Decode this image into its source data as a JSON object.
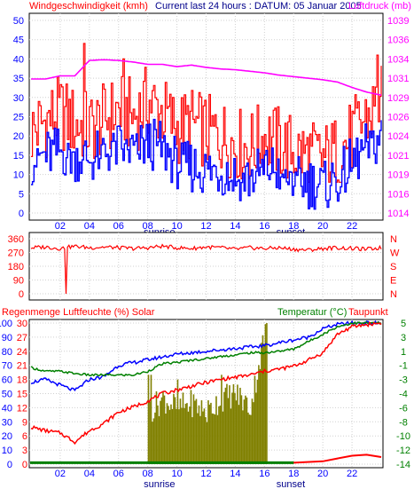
{
  "header": {
    "left_label": "Windgeschwindigkeit (kmh)",
    "center_label": "Current last 24 hours : DATUM: 05 Januar 2005",
    "right_label": "Luftdruck (mb)"
  },
  "panel2": {
    "dir_labels": [
      "N",
      "W",
      "S",
      "E",
      "N"
    ]
  },
  "panel3_header": {
    "left_label": "Regenmenge  Luftfeuchte (%)  Solar",
    "right_label1": "Temperatur (°C)",
    "right_label2": "Taupunkt"
  },
  "markers": {
    "sunrise": "sunrise",
    "sunset": "sunset"
  },
  "colors": {
    "wind_gust": "#ff0000",
    "wind_avg": "#0000ff",
    "pressure": "#ff00ff",
    "direction": "#ff0000",
    "humidity": "#0000ff",
    "temperature": "#008000",
    "dewpoint": "#ff0000",
    "solar": "#808000",
    "rain": "#ff0000",
    "grid": "#d0d0d0"
  },
  "chart_data": [
    {
      "type": "line",
      "x_ticks": [
        "02",
        "04",
        "06",
        "08",
        "10",
        "12",
        "14",
        "16",
        "18",
        "20",
        "22"
      ],
      "y_ticks_left": [
        "50",
        "45",
        "40",
        "35",
        "30",
        "25",
        "20",
        "15",
        "10",
        "5",
        "0"
      ],
      "y_ticks_right": [
        "1039",
        "1036",
        "1034",
        "1031",
        "1029",
        "1026",
        "1024",
        "1021",
        "1019",
        "1016",
        "1014"
      ],
      "ylim_left": [
        0,
        50
      ],
      "ylim_right": [
        1014,
        1039
      ],
      "series": [
        {
          "name": "Windgeschwindigkeit (kmh)",
          "x": [
            0,
            1,
            2,
            3,
            4,
            5,
            6,
            7,
            8,
            9,
            10,
            11,
            12,
            13,
            14,
            15,
            16,
            17,
            18,
            19,
            20,
            21,
            22,
            23,
            24
          ],
          "values": [
            25,
            28,
            30,
            27,
            26,
            28,
            31,
            29,
            33,
            30,
            26,
            27,
            25,
            24,
            22,
            21,
            24,
            22,
            20,
            19,
            18,
            20,
            24,
            29,
            33
          ]
        },
        {
          "x": [
            0,
            1,
            2,
            3,
            4,
            5,
            6,
            7,
            8,
            9,
            10,
            11,
            12,
            13,
            14,
            15,
            16,
            17,
            18,
            19,
            20,
            21,
            22,
            23,
            24
          ],
          "values": [
            14,
            15,
            16,
            15,
            14,
            16,
            17,
            16,
            18,
            17,
            13,
            12,
            11,
            11,
            10,
            9,
            12,
            11,
            9,
            8,
            7,
            9,
            13,
            17,
            20
          ]
        },
        {
          "name": "Luftdruck (mb)",
          "x": [
            0,
            1,
            2,
            3,
            4,
            5,
            6,
            7,
            8,
            9,
            10,
            11,
            12,
            13,
            14,
            15,
            16,
            17,
            18,
            19,
            20,
            21,
            22,
            23,
            24
          ],
          "values": [
            1031.4,
            1031.4,
            1031.8,
            1031.8,
            1033.8,
            1033.9,
            1033.8,
            1033.6,
            1033.3,
            1033.3,
            1033.0,
            1033.2,
            1032.9,
            1032.7,
            1032.6,
            1032.4,
            1032.2,
            1031.9,
            1031.7,
            1031.5,
            1031.3,
            1031.0,
            1030.3,
            1029.7,
            1029.3
          ]
        }
      ]
    },
    {
      "type": "line",
      "x_ticks": [
        "02",
        "04",
        "06",
        "08",
        "10",
        "12",
        "14",
        "16",
        "18",
        "20",
        "22"
      ],
      "y_ticks": [
        "360",
        "270",
        "180",
        "90",
        "0"
      ],
      "ylim": [
        0,
        360
      ],
      "series": [
        {
          "x": [
            0,
            1,
            2,
            3,
            4,
            5,
            6,
            7,
            8,
            9,
            10,
            11,
            12,
            13,
            14,
            15,
            16,
            17,
            18,
            19,
            20,
            21,
            22,
            23,
            24
          ],
          "values": [
            300,
            305,
            295,
            310,
            300,
            305,
            300,
            295,
            300,
            310,
            300,
            295,
            305,
            300,
            290,
            300,
            295,
            300,
            290,
            285,
            295,
            300,
            295,
            290,
            300
          ]
        }
      ]
    },
    {
      "type": "line",
      "x_ticks": [
        "02",
        "04",
        "06",
        "08",
        "10",
        "12",
        "14",
        "16",
        "18",
        "20",
        "22"
      ],
      "y_ticks_left": [
        "100",
        "90",
        "80",
        "70",
        "60",
        "50",
        "40",
        "30",
        "20",
        "10",
        "0"
      ],
      "y_ticks_left_inner": [
        "30",
        "27",
        "24",
        "21",
        "18",
        "15",
        "12",
        "9",
        "6",
        "3",
        "0"
      ],
      "y_ticks_right": [
        "5",
        "3",
        "1",
        "-1",
        "-3",
        "-4",
        "-6",
        "-8",
        "-10",
        "-12",
        "-14"
      ],
      "ylim_left": [
        0,
        100
      ],
      "ylim_right": [
        -14,
        5
      ],
      "series": [
        {
          "name": "Luftfeuchte (%)",
          "x": [
            0,
            1,
            2,
            3,
            4,
            5,
            6,
            7,
            8,
            9,
            10,
            11,
            12,
            13,
            14,
            15,
            16,
            17,
            18,
            19,
            20,
            21,
            22,
            23,
            24
          ],
          "values": [
            58,
            60,
            56,
            52,
            60,
            62,
            70,
            72,
            74,
            76,
            78,
            79,
            80,
            81,
            82,
            83,
            84,
            86,
            88,
            90,
            96,
            99,
            100,
            100,
            100
          ]
        },
        {
          "name": "Temperatur (°C)",
          "x": [
            0,
            1,
            2,
            3,
            4,
            5,
            6,
            7,
            8,
            9,
            10,
            11,
            12,
            13,
            14,
            15,
            16,
            17,
            18,
            19,
            20,
            21,
            22,
            23,
            24
          ],
          "values": [
            -1.0,
            -1.5,
            -1.5,
            -1.8,
            -2.0,
            -2.0,
            -2.0,
            -2.0,
            -1.5,
            -0.5,
            -0.3,
            0.0,
            0.2,
            0.5,
            0.7,
            1.0,
            1.0,
            1.2,
            1.5,
            2.5,
            3.5,
            4.5,
            5.0,
            5.0,
            5.0
          ]
        },
        {
          "name": "Taupunkt",
          "x": [
            0,
            1,
            2,
            3,
            4,
            5,
            6,
            7,
            8,
            9,
            10,
            11,
            12,
            13,
            14,
            15,
            16,
            17,
            18,
            19,
            20,
            21,
            22,
            23,
            24
          ],
          "values": [
            -9.0,
            -9.5,
            -9.8,
            -11.0,
            -9.5,
            -8.5,
            -7.0,
            -6.3,
            -5.5,
            -4.5,
            -4.0,
            -3.5,
            -3.0,
            -2.6,
            -2.3,
            -2.0,
            -1.5,
            -1.2,
            -0.8,
            0.0,
            1.0,
            3.5,
            4.5,
            4.8,
            5.0
          ]
        },
        {
          "name": "Solar",
          "x": [
            8,
            9,
            10,
            11,
            12,
            13,
            14,
            15,
            16
          ],
          "values": [
            11,
            14,
            12,
            13,
            11,
            14,
            15,
            12,
            28
          ]
        },
        {
          "name": "Regenmenge",
          "x": [
            0,
            4,
            8,
            12,
            16,
            18,
            20,
            21,
            22,
            23,
            24
          ],
          "values": [
            0.3,
            0.3,
            0.3,
            0.3,
            0.3,
            0.3,
            0.6,
            1.2,
            1.8,
            2.0,
            1.5
          ]
        }
      ]
    }
  ]
}
